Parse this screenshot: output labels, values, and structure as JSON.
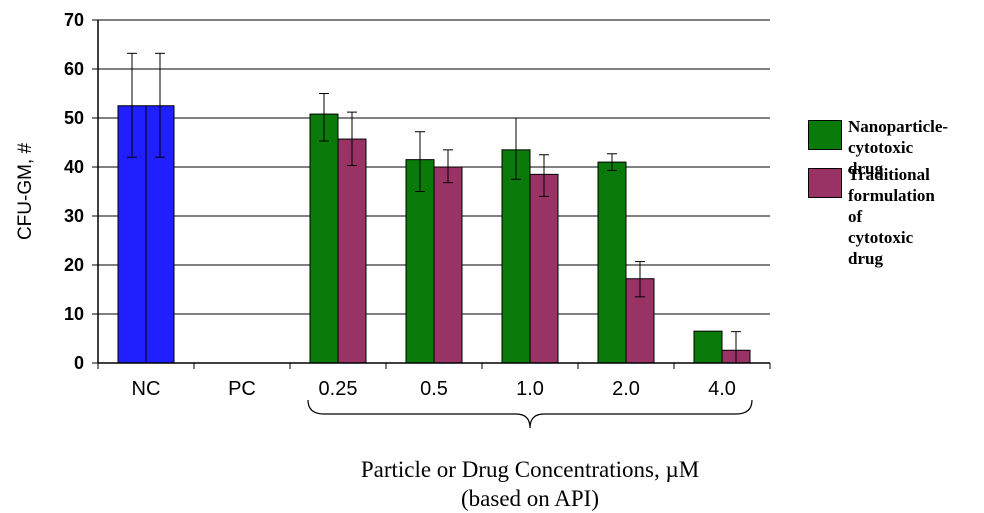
{
  "chart_data": {
    "type": "bar",
    "title": "",
    "xlabel": "Particle or Drug Concentrations, µM\n(based on API)",
    "ylabel": "CFU-GM, #",
    "ylim": [
      0,
      70
    ],
    "yticks": [
      "0",
      "10",
      "20",
      "30",
      "40",
      "50",
      "60",
      "70"
    ],
    "grid": true,
    "legend_position": "right",
    "control_bar": {
      "category": "NC",
      "value": 52.5,
      "error_high": 63.2,
      "error_low": 42,
      "color": "#1f1fff"
    },
    "categories": [
      "NC",
      "PC",
      "0.25",
      "0.5",
      "1.0",
      "2.0",
      "4.0"
    ],
    "series": [
      {
        "name": "Nanoparticle-\ncytotoxic drug",
        "color": "#0a7a0a",
        "values": [
          null,
          null,
          50.8,
          41.5,
          43.5,
          41,
          6.5
        ],
        "error_high": [
          null,
          null,
          55,
          47.2,
          50,
          42.7,
          null
        ],
        "error_low": [
          null,
          null,
          45.3,
          35,
          37.5,
          39.3,
          null
        ]
      },
      {
        "name": "Traditional\nformulation of\ncytotoxic drug",
        "color": "#993366",
        "values": [
          null,
          null,
          45.7,
          40,
          38.5,
          17.2,
          2.6
        ],
        "error_high": [
          null,
          null,
          51.2,
          43.5,
          42.5,
          20.7,
          6.4
        ],
        "error_low": [
          null,
          null,
          40.3,
          36.8,
          34,
          13.5,
          0
        ]
      }
    ]
  }
}
